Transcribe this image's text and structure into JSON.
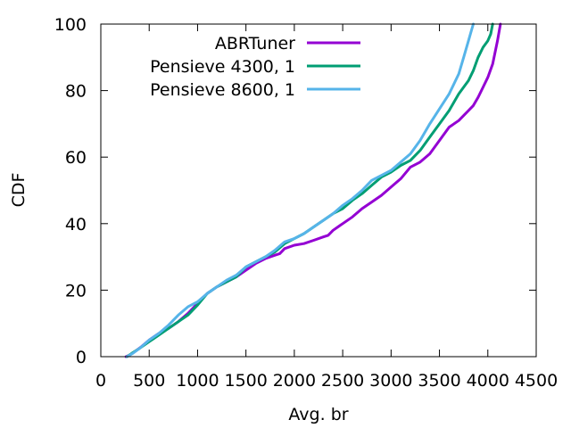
{
  "chart_data": {
    "type": "line",
    "xlabel": "Avg. br",
    "ylabel": "CDF",
    "xlim": [
      0,
      4500
    ],
    "ylim": [
      0,
      100
    ],
    "x_ticks": [
      0,
      500,
      1000,
      1500,
      2000,
      2500,
      3000,
      3500,
      4000,
      4500
    ],
    "y_ticks": [
      0,
      20,
      40,
      60,
      80,
      100
    ],
    "grid": false,
    "legend_position": "top-left",
    "series": [
      {
        "name": "ABRTuner",
        "color": "#9400d3",
        "points": [
          [
            260,
            0
          ],
          [
            300,
            0.5
          ],
          [
            350,
            1.5
          ],
          [
            420,
            3
          ],
          [
            500,
            5
          ],
          [
            600,
            7
          ],
          [
            700,
            8.5
          ],
          [
            800,
            10.5
          ],
          [
            900,
            13
          ],
          [
            1000,
            16
          ],
          [
            1100,
            19
          ],
          [
            1200,
            21
          ],
          [
            1300,
            22.5
          ],
          [
            1400,
            24
          ],
          [
            1500,
            26
          ],
          [
            1600,
            28
          ],
          [
            1700,
            29.5
          ],
          [
            1800,
            30.5
          ],
          [
            1850,
            31
          ],
          [
            1900,
            32.5
          ],
          [
            2000,
            33.5
          ],
          [
            2100,
            34
          ],
          [
            2200,
            35
          ],
          [
            2300,
            36
          ],
          [
            2350,
            36.5
          ],
          [
            2400,
            38
          ],
          [
            2500,
            40
          ],
          [
            2600,
            42
          ],
          [
            2700,
            44.5
          ],
          [
            2800,
            46.5
          ],
          [
            2900,
            48.5
          ],
          [
            3000,
            51
          ],
          [
            3100,
            53.5
          ],
          [
            3200,
            57
          ],
          [
            3300,
            58.5
          ],
          [
            3400,
            61
          ],
          [
            3500,
            65
          ],
          [
            3600,
            69
          ],
          [
            3700,
            71
          ],
          [
            3800,
            74
          ],
          [
            3850,
            75.5
          ],
          [
            3900,
            78
          ],
          [
            3950,
            81
          ],
          [
            4000,
            84
          ],
          [
            4050,
            88
          ],
          [
            4100,
            95
          ],
          [
            4130,
            100
          ]
        ]
      },
      {
        "name": "Pensieve 4300, 1",
        "color": "#009e73",
        "points": [
          [
            270,
            0
          ],
          [
            320,
            1
          ],
          [
            400,
            2.5
          ],
          [
            500,
            4.5
          ],
          [
            600,
            6.5
          ],
          [
            700,
            8.5
          ],
          [
            800,
            10.5
          ],
          [
            900,
            12.5
          ],
          [
            1000,
            15.5
          ],
          [
            1100,
            19
          ],
          [
            1200,
            21
          ],
          [
            1300,
            22.5
          ],
          [
            1400,
            24
          ],
          [
            1500,
            27
          ],
          [
            1600,
            28.5
          ],
          [
            1700,
            30
          ],
          [
            1800,
            31.5
          ],
          [
            1900,
            34
          ],
          [
            2000,
            35.5
          ],
          [
            2100,
            37
          ],
          [
            2200,
            39
          ],
          [
            2300,
            41
          ],
          [
            2400,
            43
          ],
          [
            2500,
            44.5
          ],
          [
            2600,
            47
          ],
          [
            2700,
            49
          ],
          [
            2800,
            51.5
          ],
          [
            2900,
            54
          ],
          [
            3000,
            55.5
          ],
          [
            3100,
            57.5
          ],
          [
            3200,
            59
          ],
          [
            3300,
            62
          ],
          [
            3400,
            66
          ],
          [
            3500,
            70
          ],
          [
            3600,
            74
          ],
          [
            3700,
            79
          ],
          [
            3800,
            83
          ],
          [
            3850,
            86
          ],
          [
            3900,
            90
          ],
          [
            3950,
            93
          ],
          [
            4000,
            95
          ],
          [
            4030,
            97
          ],
          [
            4050,
            100
          ]
        ]
      },
      {
        "name": "Pensieve 8600, 1",
        "color": "#56b4e9",
        "points": [
          [
            270,
            0
          ],
          [
            330,
            1
          ],
          [
            400,
            2.5
          ],
          [
            500,
            5
          ],
          [
            600,
            7
          ],
          [
            700,
            9.5
          ],
          [
            800,
            12.5
          ],
          [
            900,
            15
          ],
          [
            1000,
            16.5
          ],
          [
            1100,
            19
          ],
          [
            1200,
            21
          ],
          [
            1300,
            23
          ],
          [
            1400,
            24.5
          ],
          [
            1500,
            27
          ],
          [
            1600,
            28.5
          ],
          [
            1700,
            30
          ],
          [
            1800,
            32
          ],
          [
            1900,
            34.5
          ],
          [
            2000,
            35.5
          ],
          [
            2100,
            37
          ],
          [
            2200,
            39
          ],
          [
            2300,
            41
          ],
          [
            2400,
            43
          ],
          [
            2500,
            45.5
          ],
          [
            2600,
            47.5
          ],
          [
            2700,
            50
          ],
          [
            2800,
            53
          ],
          [
            2900,
            54.5
          ],
          [
            3000,
            56
          ],
          [
            3100,
            58.5
          ],
          [
            3200,
            61
          ],
          [
            3300,
            65
          ],
          [
            3400,
            70
          ],
          [
            3500,
            74.5
          ],
          [
            3600,
            79
          ],
          [
            3700,
            85
          ],
          [
            3750,
            90
          ],
          [
            3800,
            95
          ],
          [
            3830,
            98
          ],
          [
            3850,
            100
          ]
        ]
      }
    ]
  }
}
